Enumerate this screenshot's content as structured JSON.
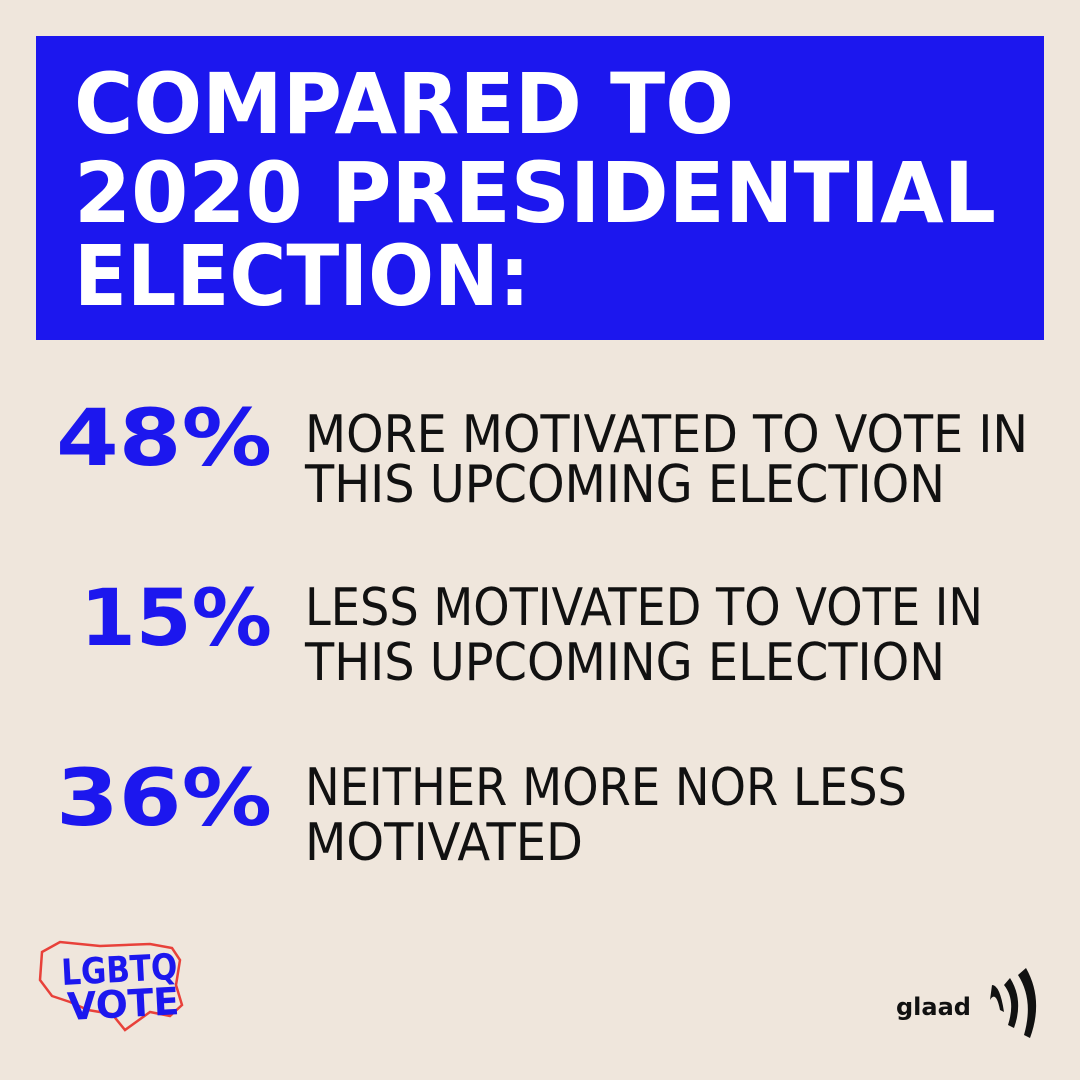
{
  "header": {
    "title_lines": [
      "COMPARED TO",
      "2020 PRESIDENTIAL",
      "ELECTION:"
    ]
  },
  "stats": [
    {
      "percent": "48%",
      "lines": [
        "MORE MOTIVATED TO VOTE IN",
        "THIS UPCOMING ELECTION"
      ]
    },
    {
      "percent": "15%",
      "lines": [
        "LESS MOTIVATED TO VOTE IN",
        "THIS UPCOMING ELECTION"
      ]
    },
    {
      "percent": "36%",
      "lines": [
        "NEITHER MORE NOR LESS",
        "MOTIVATED"
      ]
    }
  ],
  "footer": {
    "campaign_logo": [
      "LGBTQ",
      "VOTE"
    ],
    "brand": "glaad"
  }
}
